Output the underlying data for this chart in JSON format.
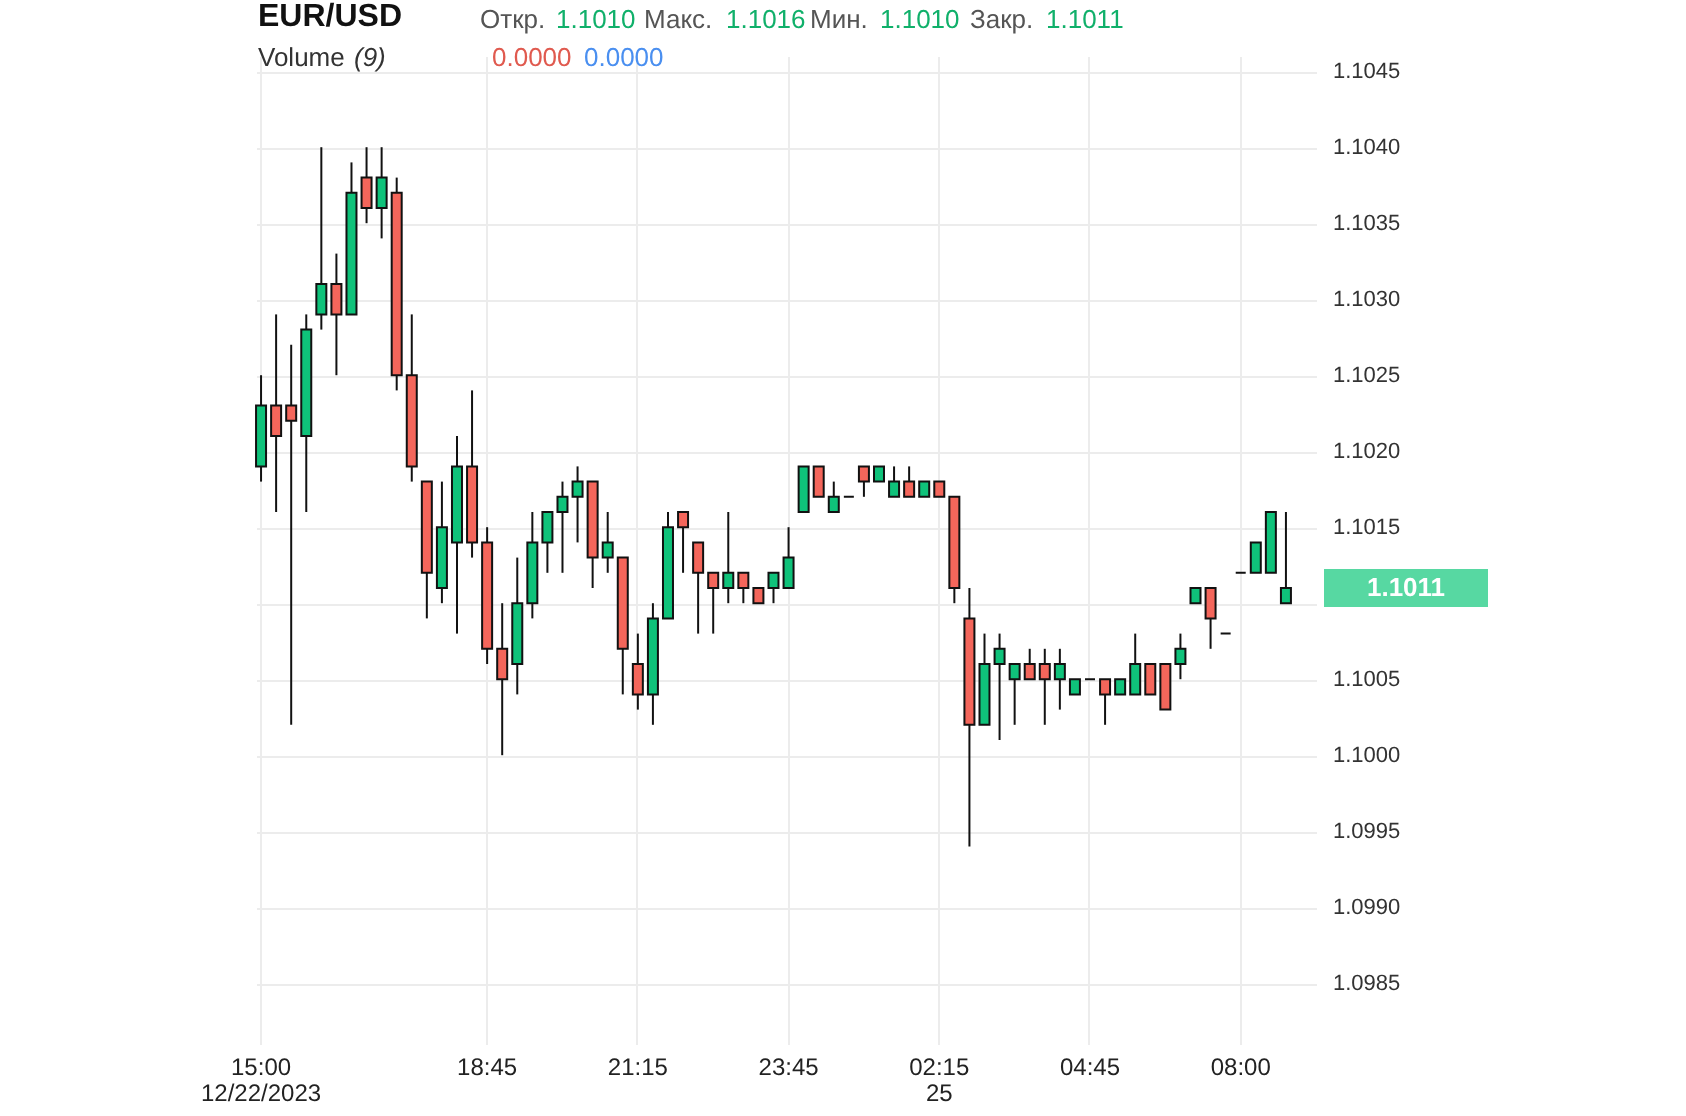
{
  "chart_data": {
    "type": "candlestick",
    "title": "EUR/USD",
    "categories": [
      "15:00\n12/22/2023",
      null,
      null,
      null,
      null,
      null,
      null,
      null,
      null,
      null,
      null,
      null,
      null,
      null,
      null,
      "18:45",
      null,
      null,
      null,
      null,
      null,
      null,
      null,
      null,
      null,
      "21:15",
      null,
      null,
      null,
      null,
      null,
      null,
      null,
      null,
      null,
      "23:45",
      null,
      null,
      null,
      null,
      null,
      null,
      null,
      null,
      null,
      "02:15\n25",
      null,
      null,
      null,
      null,
      null,
      null,
      null,
      null,
      null,
      "04:45",
      null,
      null,
      null,
      null,
      null,
      null,
      null,
      null,
      null,
      "08:00",
      null,
      null,
      null
    ],
    "ohlc": [
      [
        1.1019,
        1.1025,
        1.1018,
        1.1023
      ],
      [
        1.1023,
        1.1029,
        1.1016,
        1.1021
      ],
      [
        1.1023,
        1.1027,
        1.1002,
        1.1022
      ],
      [
        1.1021,
        1.1029,
        1.1016,
        1.1028
      ],
      [
        1.1029,
        1.104,
        1.1028,
        1.1031
      ],
      [
        1.1031,
        1.1033,
        1.1025,
        1.1029
      ],
      [
        1.1029,
        1.1039,
        1.1029,
        1.1037
      ],
      [
        1.1038,
        1.104,
        1.1035,
        1.1036
      ],
      [
        1.1036,
        1.104,
        1.1034,
        1.1038
      ],
      [
        1.1037,
        1.1038,
        1.1024,
        1.1025
      ],
      [
        1.1025,
        1.1029,
        1.1018,
        1.1019
      ],
      [
        1.1018,
        1.1018,
        1.1009,
        1.1012
      ],
      [
        1.1011,
        1.1018,
        1.101,
        1.1015
      ],
      [
        1.1014,
        1.1021,
        1.1008,
        1.1019
      ],
      [
        1.1019,
        1.1024,
        1.1013,
        1.1014
      ],
      [
        1.1014,
        1.1015,
        1.1006,
        1.1007
      ],
      [
        1.1007,
        1.101,
        1.1,
        1.1005
      ],
      [
        1.1006,
        1.1013,
        1.1004,
        1.101
      ],
      [
        1.101,
        1.1016,
        1.1009,
        1.1014
      ],
      [
        1.1014,
        1.1016,
        1.1012,
        1.1016
      ],
      [
        1.1016,
        1.1018,
        1.1012,
        1.1017
      ],
      [
        1.1017,
        1.1019,
        1.1014,
        1.1018
      ],
      [
        1.1018,
        1.1018,
        1.1011,
        1.1013
      ],
      [
        1.1013,
        1.1016,
        1.1012,
        1.1014
      ],
      [
        1.1013,
        1.1013,
        1.1004,
        1.1007
      ],
      [
        1.1006,
        1.1008,
        1.1003,
        1.1004
      ],
      [
        1.1004,
        1.101,
        1.1002,
        1.1009
      ],
      [
        1.1009,
        1.1016,
        1.1009,
        1.1015
      ],
      [
        1.1016,
        1.1016,
        1.1012,
        1.1015
      ],
      [
        1.1014,
        1.1014,
        1.1008,
        1.1012
      ],
      [
        1.1012,
        1.1012,
        1.1008,
        1.1011
      ],
      [
        1.1011,
        1.1016,
        1.101,
        1.1012
      ],
      [
        1.1012,
        1.1012,
        1.101,
        1.1011
      ],
      [
        1.1011,
        1.1011,
        1.101,
        1.101
      ],
      [
        1.1011,
        1.1012,
        1.101,
        1.1012
      ],
      [
        1.1011,
        1.1015,
        1.1011,
        1.1013
      ],
      [
        1.1016,
        1.1019,
        1.1016,
        1.1019
      ],
      [
        1.1019,
        1.1019,
        1.1017,
        1.1017
      ],
      [
        1.1016,
        1.1018,
        1.1016,
        1.1017
      ],
      [
        1.1017,
        1.1017,
        1.1017,
        1.1017
      ],
      [
        1.1019,
        1.1019,
        1.1017,
        1.1018
      ],
      [
        1.1018,
        1.1019,
        1.1018,
        1.1019
      ],
      [
        1.1017,
        1.1019,
        1.1017,
        1.1018
      ],
      [
        1.1018,
        1.1019,
        1.1017,
        1.1017
      ],
      [
        1.1017,
        1.1018,
        1.1017,
        1.1018
      ],
      [
        1.1018,
        1.1018,
        1.1017,
        1.1017
      ],
      [
        1.1017,
        1.1017,
        1.101,
        1.1011
      ],
      [
        1.1009,
        1.1011,
        1.0994,
        1.1002
      ],
      [
        1.1002,
        1.1008,
        1.1002,
        1.1006
      ],
      [
        1.1006,
        1.1008,
        1.1001,
        1.1007
      ],
      [
        1.1005,
        1.1006,
        1.1002,
        1.1006
      ],
      [
        1.1006,
        1.1007,
        1.1005,
        1.1005
      ],
      [
        1.1006,
        1.1007,
        1.1002,
        1.1005
      ],
      [
        1.1005,
        1.1007,
        1.1003,
        1.1006
      ],
      [
        1.1004,
        1.1005,
        1.1004,
        1.1005
      ],
      [
        1.1005,
        1.1005,
        1.1005,
        1.1005
      ],
      [
        1.1005,
        1.1005,
        1.1002,
        1.1004
      ],
      [
        1.1004,
        1.1005,
        1.1004,
        1.1005
      ],
      [
        1.1004,
        1.1008,
        1.1004,
        1.1006
      ],
      [
        1.1006,
        1.1006,
        1.1004,
        1.1004
      ],
      [
        1.1006,
        1.1006,
        1.1003,
        1.1003
      ],
      [
        1.1006,
        1.1008,
        1.1005,
        1.1007
      ],
      [
        1.101,
        1.1011,
        1.101,
        1.1011
      ],
      [
        1.1011,
        1.1011,
        1.1007,
        1.1009
      ],
      [
        1.1008,
        1.1008,
        1.1008,
        1.1008
      ],
      [
        1.1012,
        1.1012,
        1.1012,
        1.1012
      ],
      [
        1.1012,
        1.1014,
        1.1012,
        1.1014
      ],
      [
        1.1012,
        1.1016,
        1.1012,
        1.1016
      ],
      [
        1.101,
        1.1016,
        1.101,
        1.1011
      ]
    ],
    "ylim": [
      1.0981,
      1.1046
    ],
    "yticks": [
      1.0985,
      {
        "value": 1.099,
        "label": "1.0990"
      },
      1.0995,
      {
        "value": 1.1,
        "label": "1.1000"
      },
      1.1005,
      {
        "value": 1.101,
        "label": null
      },
      1.1015,
      {
        "value": 1.102,
        "label": "1.1020"
      },
      1.1025,
      {
        "value": 1.103,
        "label": "1.1030"
      },
      1.1035,
      {
        "value": 1.104,
        "label": "1.1040"
      },
      1.1045
    ],
    "grid": true,
    "annotations": [
      "Откр.",
      "1.1010",
      "Макс.",
      "1.1016",
      "Мин.",
      "1.1010",
      "Закр.",
      "1.1011",
      "Volume",
      "(9)",
      "0.0000",
      "0.0000",
      "1.1011"
    ]
  }
}
